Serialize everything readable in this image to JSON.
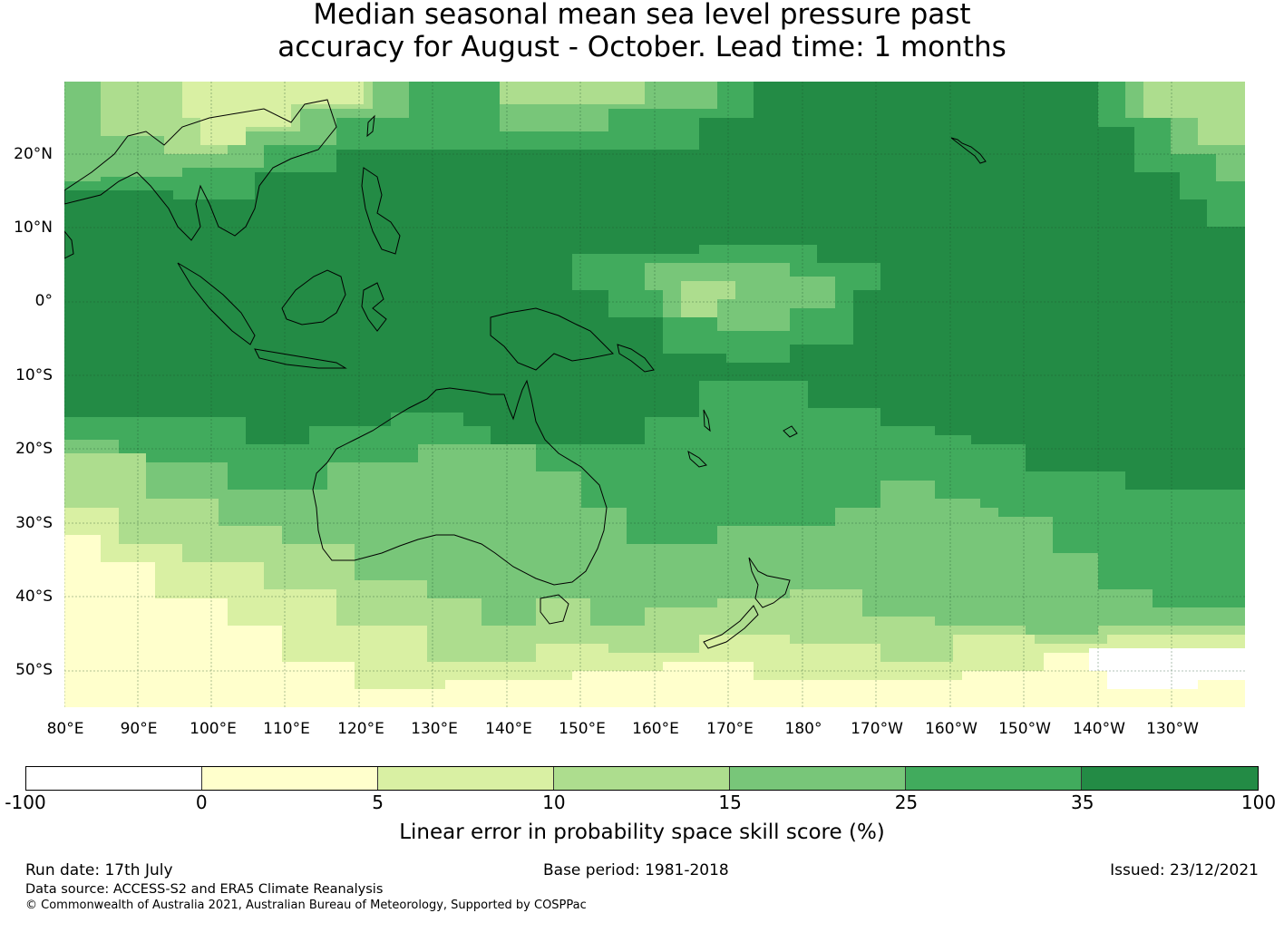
{
  "title": {
    "line1": "Median seasonal mean sea level pressure past",
    "line2": "accuracy for August - October. Lead time: 1 months"
  },
  "map": {
    "lat_labels": [
      "20°N",
      "10°N",
      "0°",
      "10°S",
      "20°S",
      "30°S",
      "40°S",
      "50°S"
    ],
    "lon_labels": [
      "80°E",
      "90°E",
      "100°E",
      "110°E",
      "120°E",
      "130°E",
      "140°E",
      "150°E",
      "160°E",
      "170°E",
      "180°",
      "170°W",
      "160°W",
      "150°W",
      "140°W",
      "130°W"
    ],
    "ocean_base_color": "#238b45"
  },
  "colorbar": {
    "ticks": [
      "-100",
      "0",
      "5",
      "10",
      "15",
      "25",
      "35",
      "100"
    ],
    "colors": [
      "#ffffff",
      "#ffffcc",
      "#d9f0a3",
      "#addd8e",
      "#78c679",
      "#41ab5d",
      "#238b45"
    ],
    "label": "Linear error in probability space skill score (%)"
  },
  "footer": {
    "run_date": "Run date: 17th July",
    "base_period": "Base period: 1981-2018",
    "issued": "Issued: 23/12/2021",
    "data_source": "Data source: ACCESS-S2 and ERA5 Climate Reanalysis",
    "copyright": "© Commonwealth of Australia 2021, Australian Bureau of Meteorology, Supported by COSPPac"
  }
}
